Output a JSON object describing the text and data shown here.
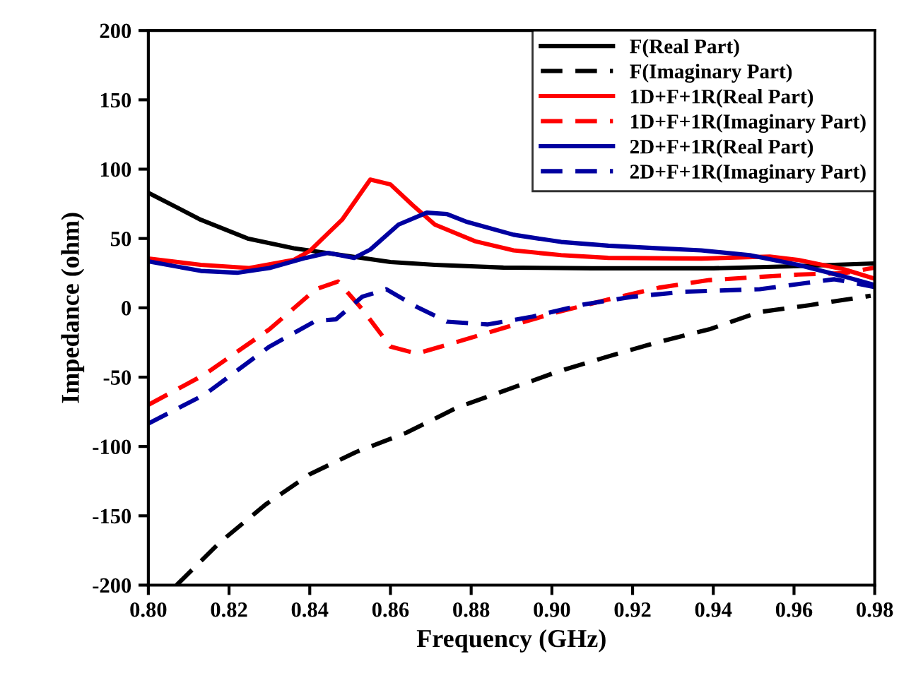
{
  "chart_data": {
    "type": "line",
    "xlabel": "Frequency (GHz)",
    "ylabel": "Impedance (ohm)",
    "xlim": [
      0.8,
      0.98
    ],
    "ylim": [
      -200,
      200
    ],
    "xticks": [
      {
        "value": 0.8,
        "label": "0.80"
      },
      {
        "value": 0.82,
        "label": "0.82"
      },
      {
        "value": 0.84,
        "label": "0.84"
      },
      {
        "value": 0.86,
        "label": "0.86"
      },
      {
        "value": 0.88,
        "label": "0.88"
      },
      {
        "value": 0.9,
        "label": "0.90"
      },
      {
        "value": 0.92,
        "label": "0.92"
      },
      {
        "value": 0.94,
        "label": "0.94"
      },
      {
        "value": 0.96,
        "label": "0.96"
      },
      {
        "value": 0.98,
        "label": "0.98"
      }
    ],
    "yticks": [
      -200,
      -150,
      -100,
      -50,
      0,
      50,
      100,
      150,
      200
    ],
    "grid": false,
    "legend": "top right",
    "marker": "none",
    "series": [
      {
        "name": "F(Real Part)",
        "color": "#000000",
        "line_style": "solid",
        "x": [
          0.8,
          0.813,
          0.8246,
          0.836,
          0.848,
          0.86,
          0.871,
          0.888,
          0.91,
          0.94,
          0.96,
          0.98
        ],
        "values": [
          83,
          63.5,
          50,
          43,
          38,
          33,
          31,
          29,
          28.5,
          28.5,
          30,
          32
        ]
      },
      {
        "name": "F(Imaginary Part)",
        "color": "#000000",
        "line_style": "dashed",
        "x": [
          0.807,
          0.8178,
          0.829,
          0.84,
          0.8515,
          0.864,
          0.8765,
          0.889,
          0.9015,
          0.914,
          0.9265,
          0.939,
          0.9515,
          0.964,
          0.979
        ],
        "values": [
          -200,
          -169,
          -142,
          -120,
          -104,
          -90,
          -72,
          -59,
          -46,
          -35,
          -24.6,
          -15.5,
          -3,
          2,
          8.7
        ]
      },
      {
        "name": "1D+F+1R(Real Part)",
        "color": "#ff0000",
        "line_style": "solid",
        "x": [
          0.8,
          0.813,
          0.825,
          0.836,
          0.84,
          0.848,
          0.855,
          0.86,
          0.8655,
          0.871,
          0.881,
          0.8905,
          0.9023,
          0.914,
          0.937,
          0.954,
          0.961,
          0.9725,
          0.98
        ],
        "values": [
          35.5,
          31,
          28.7,
          34.5,
          41,
          63.5,
          92.5,
          89,
          74,
          60,
          48,
          41.4,
          38,
          36,
          35.5,
          37,
          34.5,
          27.7,
          21
        ]
      },
      {
        "name": "1D+F+1R(Imaginary Part)",
        "color": "#ff0000",
        "line_style": "dashed",
        "x": [
          0.8,
          0.814,
          0.83,
          0.8415,
          0.847,
          0.853,
          0.86,
          0.8665,
          0.8765,
          0.889,
          0.9015,
          0.914,
          0.9265,
          0.939,
          0.961,
          0.9725,
          0.98
        ],
        "values": [
          -70,
          -48,
          -15.5,
          13.4,
          19,
          -1,
          -28,
          -33,
          -24.6,
          -13.7,
          -3,
          6,
          14.5,
          20,
          24,
          25,
          29
        ]
      },
      {
        "name": "2D+F+1R(Real Part)",
        "color": "#0000a0",
        "line_style": "solid",
        "x": [
          0.8,
          0.813,
          0.822,
          0.83,
          0.839,
          0.8445,
          0.851,
          0.855,
          0.862,
          0.869,
          0.874,
          0.879,
          0.8905,
          0.9023,
          0.914,
          0.9257,
          0.937,
          0.949,
          0.961,
          0.9725,
          0.98
        ],
        "values": [
          33.5,
          26.6,
          25.3,
          28.7,
          36,
          39.6,
          36,
          42,
          60,
          68.6,
          67.6,
          61.9,
          52.7,
          47.5,
          44.8,
          43,
          41.4,
          38,
          31,
          22.5,
          16.4
        ]
      },
      {
        "name": "2D+F+1R(Imaginary Part)",
        "color": "#0000a0",
        "line_style": "dashed",
        "x": [
          0.8,
          0.814,
          0.83,
          0.8415,
          0.8465,
          0.853,
          0.859,
          0.8665,
          0.874,
          0.884,
          0.895,
          0.908,
          0.92,
          0.933,
          0.9515,
          0.97,
          0.98
        ],
        "values": [
          -83.5,
          -62.5,
          -28,
          -9.4,
          -8.3,
          8,
          13.4,
          0.7,
          -10,
          -12,
          -6.5,
          2.5,
          8,
          11.6,
          13.4,
          20.6,
          15
        ]
      }
    ]
  }
}
